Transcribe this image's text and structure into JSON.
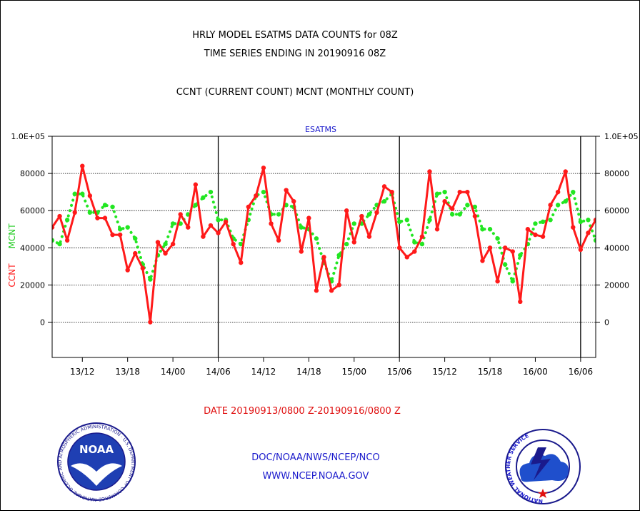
{
  "header": {
    "title_line1": "HRLY MODEL ESATMS DATA COUNTS for 08Z",
    "title_line2": "TIME SERIES ENDING IN 20190916 08Z",
    "subtitle": "CCNT (CURRENT COUNT) MCNT (MONTHLY COUNT)"
  },
  "footer": {
    "date_range": "DATE 20190913/0800 Z-20190916/0800 Z",
    "org_line": "DOC/NOAA/NWS/NCEP/NCO",
    "url_line": "WWW.NCEP.NOAA.GOV"
  },
  "logos": {
    "noaa": {
      "text": "NOAA",
      "ring_text": "NATIONAL OCEANIC AND ATMOSPHERIC ADMINISTRATION · U.S. DEPARTMENT OF COMMERCE ·"
    },
    "nws": {
      "ring_text": "NATIONAL WEATHER SERVICE"
    }
  },
  "chart_data": {
    "type": "line",
    "title": "ESATMS",
    "ylabel_left_1": "CCNT",
    "ylabel_left_2": "MCNT",
    "y_ticks_left": [
      "1.0E+05",
      "80000",
      "60000",
      "40000",
      "20000",
      "0"
    ],
    "y_ticks_right": [
      "1.0E+05",
      "80000",
      "60000",
      "40000",
      "20000",
      "0"
    ],
    "y_tick_values": [
      100000,
      80000,
      60000,
      40000,
      20000,
      0
    ],
    "ylim": [
      -19000,
      100000
    ],
    "x_tick_labels": [
      "13/12",
      "13/18",
      "14/00",
      "14/06",
      "14/12",
      "14/18",
      "15/00",
      "15/06",
      "15/12",
      "15/18",
      "16/00",
      "16/06"
    ],
    "x_tick_hours": [
      4,
      10,
      16,
      22,
      28,
      34,
      40,
      46,
      52,
      58,
      64,
      70
    ],
    "day_boundaries_hours": [
      22,
      46,
      70
    ],
    "x_range_hours": [
      0,
      72
    ],
    "x_start": "2019-09-13 08Z",
    "x_step": "1 hour",
    "grid": true,
    "series": [
      {
        "name": "CCNT",
        "color": "#ff1a1a",
        "style": "solid",
        "values": [
          51000,
          57000,
          44000,
          59000,
          84000,
          68000,
          56000,
          56000,
          47000,
          47000,
          28000,
          37000,
          29000,
          0,
          43000,
          37000,
          42000,
          58000,
          51000,
          74000,
          46000,
          52000,
          48000,
          54000,
          42000,
          32000,
          62000,
          68000,
          83000,
          53000,
          44000,
          71000,
          65000,
          38000,
          56000,
          17000,
          35000,
          17000,
          20000,
          60000,
          43000,
          57000,
          46000,
          59000,
          73000,
          70000,
          40000,
          35000,
          38000,
          46000,
          81000,
          50000,
          65000,
          61000,
          70000,
          70000,
          57000,
          33000,
          40000,
          22000,
          40000,
          38000,
          11000,
          50000,
          47000,
          46000,
          63000,
          70000,
          81000,
          51000,
          39000,
          48000,
          55000
        ]
      },
      {
        "name": "MCNT",
        "color": "#22e622",
        "style": "dotted",
        "values": [
          44000,
          42000,
          55000,
          69000,
          69000,
          59000,
          59000,
          63000,
          62000,
          50000,
          51000,
          45000,
          31000,
          23000,
          36000,
          42000,
          53000,
          53000,
          58000,
          63000,
          67000,
          70000,
          55000,
          55000,
          45000,
          42000,
          55000,
          68000,
          70000,
          58000,
          58000,
          63000,
          62000,
          51000,
          50000,
          45000,
          32000,
          22000,
          36000,
          42000,
          53000,
          53000,
          58000,
          63000,
          65000,
          69000,
          54000,
          55000,
          43000,
          42000,
          55000,
          69000,
          70000,
          58000,
          58000,
          63000,
          62000,
          50000,
          50000,
          45000,
          31000,
          22000,
          36000,
          42000,
          53000,
          54000,
          55000,
          63000,
          65000,
          70000,
          54000,
          55000,
          44000
        ]
      }
    ]
  }
}
